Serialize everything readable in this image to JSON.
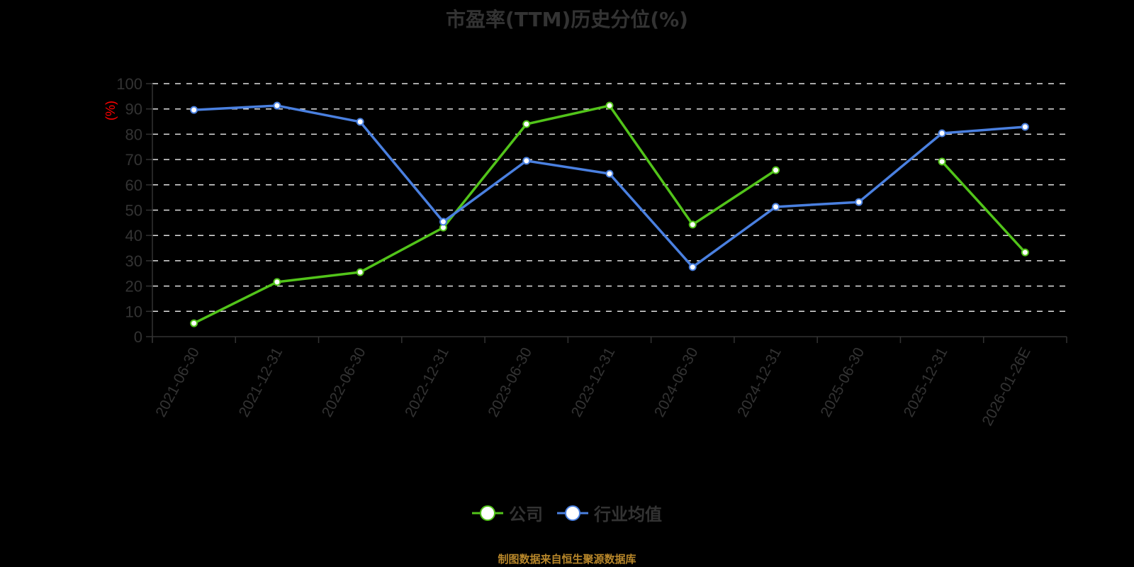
{
  "title": "市盈率(TTM)历史分位(%)",
  "footer": "制图数据来自恒生聚源数据库",
  "legend": [
    {
      "label": "公司",
      "color": "#52c41a"
    },
    {
      "label": "行业均值",
      "color": "#4a80e0"
    }
  ],
  "chart_data": {
    "type": "line",
    "title": "市盈率(TTM)历史分位(%)",
    "xlabel": "",
    "ylabel": "(%)",
    "ylim": [
      0,
      100
    ],
    "yticks": [
      0,
      10,
      20,
      30,
      40,
      50,
      60,
      70,
      80,
      90,
      100
    ],
    "grid": true,
    "legend_position": "bottom",
    "categories": [
      "2021-06-30",
      "2021-12-31",
      "2022-06-30",
      "2022-12-31",
      "2023-06-30",
      "2023-12-31",
      "2024-06-30",
      "2024-12-31",
      "2025-06-30",
      "2025-12-31",
      "2026-01-26E"
    ],
    "series": [
      {
        "name": "公司",
        "color": "#52c41a",
        "values": [
          5.3,
          21.6,
          25.5,
          43.1,
          84.0,
          91.3,
          44.3,
          65.8,
          null,
          69.2,
          33.3
        ]
      },
      {
        "name": "行业均值",
        "color": "#4a80e0",
        "values": [
          89.6,
          91.3,
          84.9,
          45.4,
          69.5,
          64.4,
          27.5,
          51.3,
          53.2,
          80.4,
          82.9
        ]
      }
    ]
  }
}
